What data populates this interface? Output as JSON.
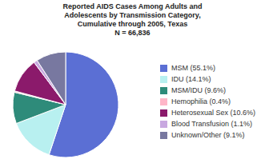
{
  "chart_data": {
    "type": "pie",
    "title": "Reported AIDS Cases Among Adults and\nAdolescents by Transmission Category,\nCumulative through 2005, Texas\nN = 66,836",
    "categories": [
      "MSM (55.1%)",
      "IDU (14.1%)",
      "MSM/IDU (9.6%)",
      "Hemophilia (0.4%)",
      "Heterosexual Sex (10.6%)",
      "Blood Transfusion (1.1%)",
      "Unknown/Other (9.1%)"
    ],
    "values": [
      55.1,
      14.1,
      9.6,
      0.4,
      10.6,
      1.1,
      9.1
    ],
    "colors": [
      "#5b6fd4",
      "#b8f0f0",
      "#2e8b7a",
      "#ffb6c8",
      "#8b1a6b",
      "#c8a8e0",
      "#7878a0"
    ],
    "legend": "right"
  }
}
